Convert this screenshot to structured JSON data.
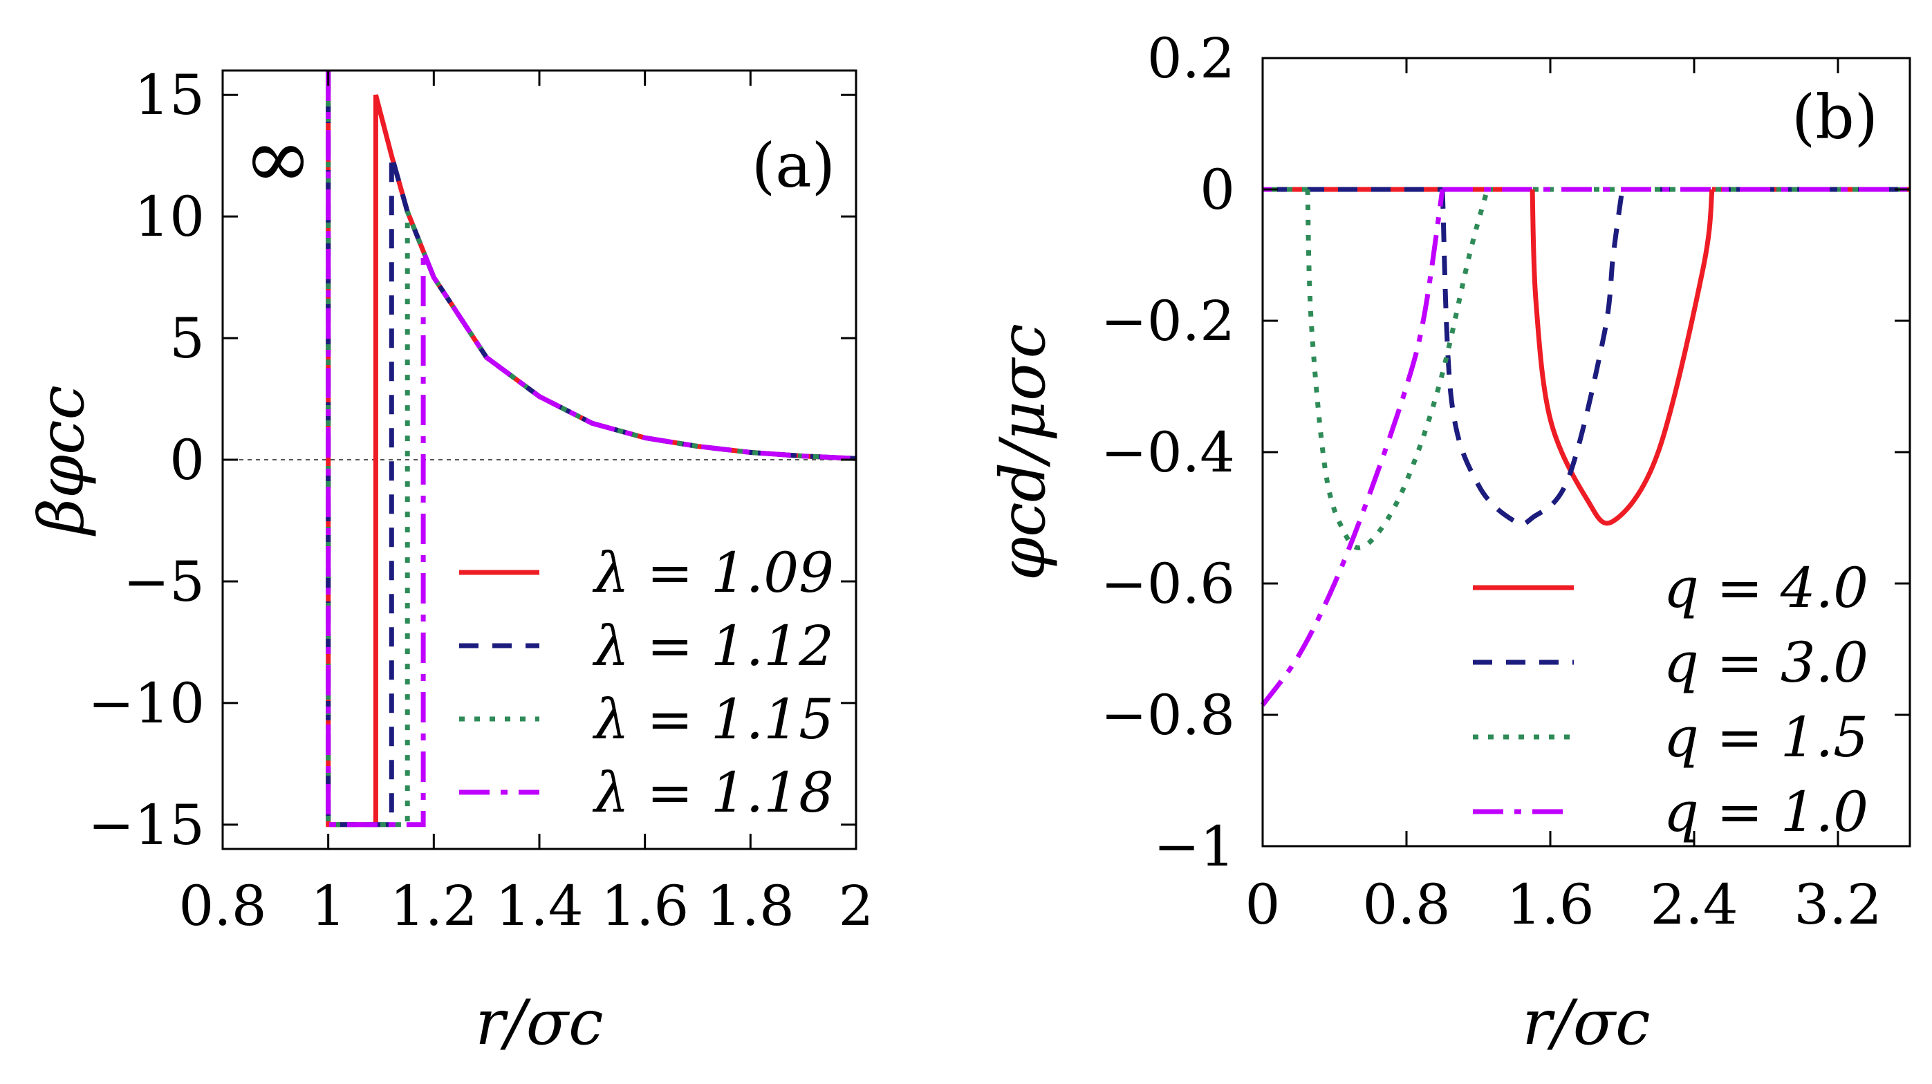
{
  "chart_data": [
    {
      "panel": "(a)",
      "type": "line",
      "xlabel": "r/σc",
      "ylabel": "βφcc",
      "xlim": [
        0.8,
        2.0
      ],
      "ylim": [
        -16,
        16
      ],
      "xticks": [
        "0.8",
        "1",
        "1.2",
        "1.4",
        "1.6",
        "1.8",
        "2"
      ],
      "yticks": [
        "15",
        "10",
        "5",
        "0",
        "−5",
        "−10",
        "−15"
      ],
      "annotation": "∞",
      "legend_position": "bottom-right",
      "series": [
        {
          "name": "λ = 1.09",
          "lambda": 1.09,
          "color": "#ee1c25",
          "dash": "solid"
        },
        {
          "name": "λ = 1.12",
          "lambda": 1.12,
          "color": "#1c1c7e",
          "dash": "dashed"
        },
        {
          "name": "λ = 1.15",
          "lambda": 1.15,
          "color": "#2e8b57",
          "dash": "dotted"
        },
        {
          "name": "λ = 1.18",
          "lambda": 1.18,
          "color": "#bf00ff",
          "dash": "dashdot"
        }
      ],
      "repulsive_tail": {
        "x": [
          1.09,
          1.12,
          1.15,
          1.2,
          1.3,
          1.4,
          1.5,
          1.6,
          1.7,
          1.8,
          1.9,
          2.0
        ],
        "y": [
          15.0,
          12.5,
          10.2,
          7.5,
          4.2,
          2.6,
          1.5,
          0.9,
          0.55,
          0.3,
          0.15,
          0.05
        ]
      },
      "well_depth": -15,
      "hard_core_at": 1.0
    },
    {
      "panel": "(b)",
      "type": "line",
      "xlabel": "r/σc",
      "ylabel": "φcd/μσc",
      "xlim": [
        0,
        3.6
      ],
      "ylim": [
        -1,
        0.2
      ],
      "xticks": [
        "0",
        "0.8",
        "1.6",
        "2.4",
        "3.2"
      ],
      "yticks": [
        "0.2",
        "0",
        "−0.2",
        "−0.4",
        "−0.6",
        "−0.8",
        "−1"
      ],
      "legend_position": "bottom-right",
      "series": [
        {
          "name": "q = 4.0",
          "q": 4.0,
          "color": "#ee1c25",
          "dash": "solid",
          "x": [
            1.5,
            1.52,
            1.6,
            1.8,
            1.95,
            2.2,
            2.45,
            2.5
          ],
          "y": [
            0.0,
            -0.17,
            -0.35,
            -0.47,
            -0.505,
            -0.4,
            -0.12,
            0.0
          ]
        },
        {
          "name": "q = 3.0",
          "q": 3.0,
          "color": "#1c1c7e",
          "dash": "dashed",
          "x": [
            1.0,
            1.05,
            1.2,
            1.4,
            1.5,
            1.7,
            1.9,
            1.95,
            2.0
          ],
          "y": [
            0.0,
            -0.32,
            -0.45,
            -0.505,
            -0.5,
            -0.44,
            -0.22,
            -0.1,
            0.0
          ]
        },
        {
          "name": "q = 1.5",
          "q": 1.5,
          "color": "#2e8b57",
          "dash": "dotted",
          "x": [
            0.25,
            0.27,
            0.35,
            0.45,
            0.55,
            0.7,
            0.85,
            1.0,
            1.15,
            1.25
          ],
          "y": [
            0.0,
            -0.2,
            -0.43,
            -0.52,
            -0.545,
            -0.5,
            -0.41,
            -0.28,
            -0.1,
            0.0
          ]
        },
        {
          "name": "q = 1.0",
          "q": 1.0,
          "color": "#bf00ff",
          "dash": "dashdot",
          "x": [
            0.0,
            0.2,
            0.4,
            0.6,
            0.8,
            0.9,
            1.0
          ],
          "y": [
            -0.785,
            -0.71,
            -0.6,
            -0.46,
            -0.3,
            -0.19,
            0.0
          ]
        }
      ],
      "zero_line_range": [
        0.05,
        3.6
      ]
    }
  ]
}
